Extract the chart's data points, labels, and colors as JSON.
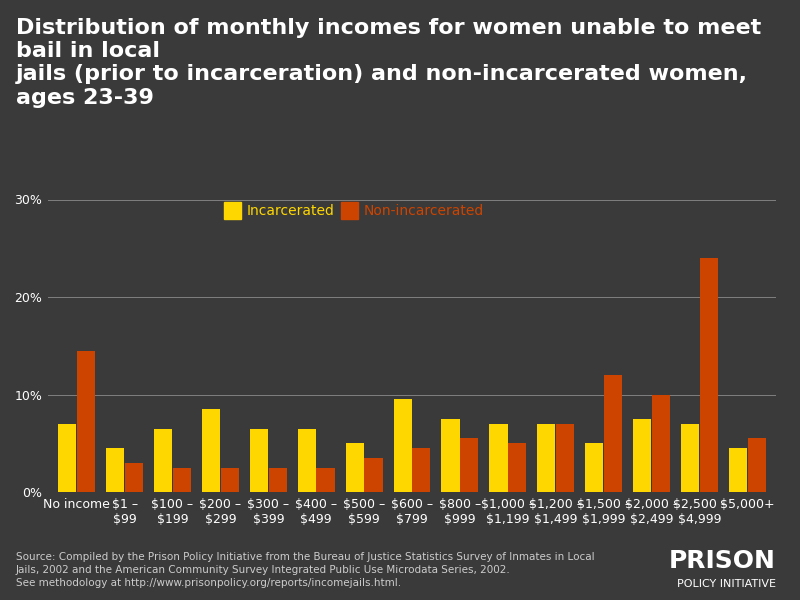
{
  "categories": [
    "No income",
    "$1 –\n$99",
    "$100 –\n$199",
    "$200 –\n$299",
    "$300 –\n$399",
    "$400 –\n$499",
    "$500 –\n$599",
    "$600 –\n$799",
    "$800 –\n$999",
    "$1,000 –\n$1,199",
    "$1,200 –\n$1,499",
    "$1,500 –\n$1,999",
    "$2,000 -\n$2,499",
    "$2,500 -\n$4,999",
    "$5,000+"
  ],
  "incarcerated": [
    7.0,
    4.5,
    6.5,
    8.5,
    6.5,
    6.5,
    5.0,
    9.5,
    7.5,
    7.0,
    7.0,
    5.0,
    7.5,
    7.0,
    4.5
  ],
  "non_incarcerated": [
    14.5,
    3.0,
    2.5,
    2.5,
    2.5,
    2.5,
    3.5,
    4.5,
    5.5,
    5.0,
    7.0,
    12.0,
    10.0,
    24.0,
    5.5
  ],
  "incarcerated_color": "#FFD700",
  "non_incarcerated_color": "#CC4400",
  "background_color": "#3a3a3a",
  "title_line1": "Distribution of monthly incomes for women unable to meet bail in local",
  "title_line2": "jails (prior to incarceration) and non-incarcerated women, ages 23-39",
  "ylabel_ticks": [
    "0%",
    "10%",
    "20%",
    "30%"
  ],
  "yticks": [
    0,
    10,
    20,
    30
  ],
  "ylim": [
    0,
    32
  ],
  "source_text": "Source: Compiled by the Prison Policy Initiative from the Bureau of Justice Statistics Survey of Inmates in Local\nJails, 2002 and the American Community Survey Integrated Public Use Microdata Series, 2002.\nSee methodology at http://www.prisonpolicy.org/reports/incomejails.html.",
  "logo_text1": "PRISON",
  "logo_text2": "POLICY INITIATIVE",
  "legend_incarcerated": "Incarcerated",
  "legend_non_incarcerated": "Non-incarcerated",
  "title_fontsize": 16,
  "axis_label_fontsize": 9,
  "tick_fontsize": 9,
  "source_fontsize": 7.5,
  "legend_fontsize": 10
}
